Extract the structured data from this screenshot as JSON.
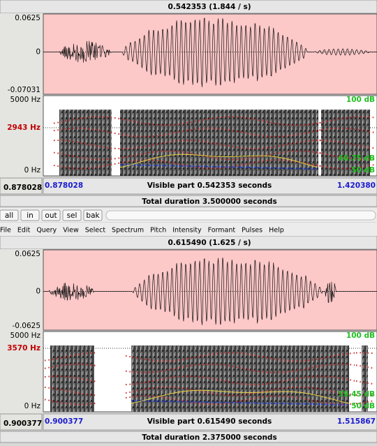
{
  "panels": [
    {
      "header": "0.542353 (1.844 / s)",
      "wave_ticks": [
        "0.0625",
        "0",
        "-0.07031"
      ],
      "freq_top": "5000 Hz",
      "freq_cursor": "2943 Hz",
      "freq_bottom": "0 Hz",
      "db_top": "100 dB",
      "db_value": "60.75 dB",
      "db_bottom": "50 dB",
      "cursor_time": "0.878028",
      "window_start": "0.878028",
      "visible": "Visible part 0.542353 seconds",
      "window_end": "1.420380",
      "total": "Total duration 3.500000 seconds"
    },
    {
      "header": "0.615490 (1.625 / s)",
      "wave_ticks": [
        "0.0625",
        "0",
        "-0.0625"
      ],
      "freq_top": "5000 Hz",
      "freq_cursor": "3570 Hz",
      "freq_bottom": "0 Hz",
      "db_top": "100 dB",
      "db_value": "59.45 dB",
      "db_bottom": "50 dB",
      "cursor_time": "0.900377",
      "window_start": "0.900377",
      "visible": "Visible part 0.615490 seconds",
      "window_end": "1.515867",
      "total": "Total duration 2.375000 seconds"
    }
  ],
  "toolbar": [
    "all",
    "in",
    "out",
    "sel",
    "bak"
  ],
  "menu": [
    "File",
    "Edit",
    "Query",
    "View",
    "Select",
    "Spectrum",
    "Pitch",
    "Intensity",
    "Formant",
    "Pulses",
    "Help"
  ]
}
